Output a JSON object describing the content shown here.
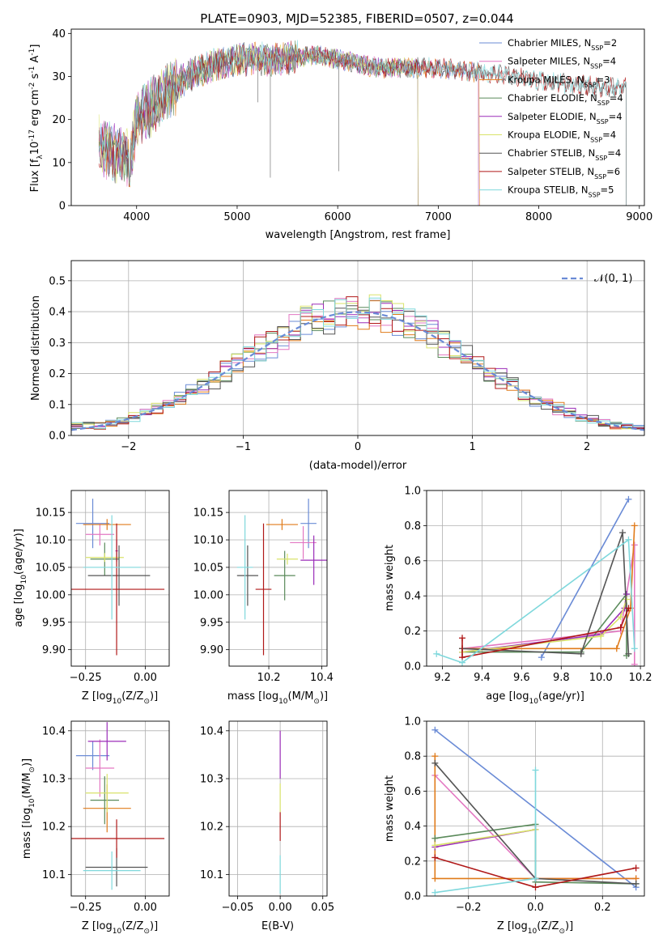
{
  "figure": {
    "title": "PLATE=0903, MJD=52385, FIBERID=0507, z=0.044"
  },
  "colors": {
    "Chabrier MILES": "#6a8bd6",
    "Salpeter MILES": "#e377c2",
    "Kroupa MILES": "#e07b1a",
    "Chabrier ELODIE": "#5a8a5a",
    "Salpeter ELODIE": "#9b2db8",
    "Kroupa ELODIE": "#d9e36a",
    "Chabrier STELIB": "#555555",
    "Salpeter STELIB": "#b01818",
    "Kroupa STELIB": "#7fd8dc"
  },
  "chart_data": [
    {
      "id": "spectrum",
      "type": "line",
      "xlabel": "wavelength [Angstrom, rest frame]",
      "ylabel_main": "Flux [f",
      "ylabel_unit": "10",
      "ylabel_exp": "-17",
      "ylabel_tail": " erg cm",
      "ylabel_tail_exp1": "-2",
      "ylabel_s": " s",
      "ylabel_tail_exp2": "-1",
      "ylabel_A": " A",
      "ylabel_tail_exp3": "-1",
      "ylabel_close": "]",
      "xlim": [
        3350,
        9050
      ],
      "ylim": [
        0,
        41
      ],
      "xticks": [
        "4000",
        "5000",
        "6000",
        "7000",
        "8000",
        "9000"
      ],
      "yticks": [
        "0",
        "10",
        "20",
        "30",
        "40"
      ],
      "xtick_values": [
        4000,
        5000,
        6000,
        7000,
        8000,
        9000
      ],
      "ytick_values": [
        0,
        10,
        20,
        30,
        40
      ],
      "continuum": {
        "x": [
          3620,
          3700,
          3800,
          3900,
          3950,
          4000,
          4100,
          4200,
          4300,
          4400,
          4500,
          4600,
          4700,
          4800,
          4900,
          5000,
          5200,
          5400,
          5600,
          5800,
          6000,
          6200,
          6400,
          6600,
          6800,
          7000,
          7200,
          7400,
          7600,
          7800,
          8000,
          8200,
          8400,
          8600,
          8800,
          8900
        ],
        "y": [
          15,
          13,
          12,
          11,
          12,
          20,
          22,
          24,
          26,
          28,
          30,
          31,
          32,
          33,
          33.5,
          34,
          34,
          34,
          34.5,
          35,
          34,
          33,
          32,
          32,
          32,
          32,
          31.5,
          31,
          30.5,
          30,
          29,
          28.5,
          28,
          27.5,
          27.5,
          27.5
        ]
      },
      "legend": [
        {
          "name": "Chabrier MILES",
          "n": "2"
        },
        {
          "name": "Salpeter MILES",
          "n": "4"
        },
        {
          "name": "Kroupa MILES",
          "n": "3"
        },
        {
          "name": "Chabrier ELODIE",
          "n": "4"
        },
        {
          "name": "Salpeter ELODIE",
          "n": "4"
        },
        {
          "name": "Kroupa ELODIE",
          "n": "4"
        },
        {
          "name": "Chabrier STELIB",
          "n": "4"
        },
        {
          "name": "Salpeter STELIB",
          "n": "6"
        },
        {
          "name": "Kroupa STELIB",
          "n": "5"
        }
      ],
      "legend_nlabel": "N",
      "legend_nsub": "SSP",
      "legend_placement": "upper-right",
      "grid": false
    },
    {
      "id": "residuals",
      "type": "histogram",
      "xlabel": "(data-model)/error",
      "ylabel": "Normed distribution",
      "xlim": [
        -2.5,
        2.5
      ],
      "ylim": [
        0,
        0.565
      ],
      "xticks": [
        "−2",
        "−1",
        "0",
        "1",
        "2"
      ],
      "xtick_values": [
        -2,
        -1,
        0,
        1,
        2
      ],
      "yticks": [
        "0.0",
        "0.1",
        "0.2",
        "0.3",
        "0.4",
        "0.5"
      ],
      "ytick_values": [
        0,
        0.1,
        0.2,
        0.3,
        0.4,
        0.5
      ],
      "bin_width": 0.1,
      "legend_label": "𝒩(0, 1)",
      "legend_placement": "upper-right",
      "grid": true
    },
    {
      "id": "age_vs_Z",
      "type": "errorbar",
      "xlabel": "Z [log",
      "xlabel_sub": "10",
      "xlabel_tail": "(Z/Z",
      "xlabel_sun": "⊙",
      "xlabel_close": ")]",
      "ylabel": "age  [log",
      "ylabel_sub": "10",
      "ylabel_tail": "(age/yr)]",
      "xlim": [
        -0.31,
        0.1
      ],
      "ylim": [
        9.87,
        10.19
      ],
      "xticks": [
        "−0.25",
        "0.00"
      ],
      "xtick_values": [
        -0.25,
        0
      ],
      "yticks": [
        "9.90",
        "9.95",
        "10.00",
        "10.05",
        "10.10",
        "10.15"
      ],
      "ytick_values": [
        9.9,
        9.95,
        10,
        10.05,
        10.1,
        10.15
      ],
      "points": [
        {
          "s": "Chabrier MILES",
          "x": -0.22,
          "xerr": 0.07,
          "y": 10.13,
          "yerr": 0.045
        },
        {
          "s": "Salpeter MILES",
          "x": -0.19,
          "xerr": 0.06,
          "y": 10.11,
          "yerr": 0.02
        },
        {
          "s": "Kroupa MILES",
          "x": -0.16,
          "xerr": 0.1,
          "y": 10.128,
          "yerr": 0.01
        },
        {
          "s": "Chabrier ELODIE",
          "x": -0.17,
          "xerr": 0.06,
          "y": 10.065,
          "yerr": 0.03
        },
        {
          "s": "Salpeter ELODIE",
          "x": -0.12,
          "xerr": 0.005,
          "y": 10.08,
          "yerr": 0.02
        },
        {
          "s": "Kroupa ELODIE",
          "x": -0.17,
          "xerr": 0.08,
          "y": 10.068,
          "yerr": 0.008
        },
        {
          "s": "Chabrier STELIB",
          "x": -0.11,
          "xerr": 0.13,
          "y": 10.035,
          "yerr": 0.055
        },
        {
          "s": "Salpeter STELIB",
          "x": -0.12,
          "xerr": 0.2,
          "y": 10.01,
          "yerr": 0.12
        },
        {
          "s": "Kroupa STELIB",
          "x": -0.14,
          "xerr": 0.12,
          "y": 10.05,
          "yerr": 0.095
        }
      ],
      "grid": true
    },
    {
      "id": "age_vs_mass",
      "type": "errorbar",
      "xlabel": "mass [log",
      "xlabel_sub": "10",
      "xlabel_tail": "(M/M",
      "xlabel_sun": "⊙",
      "xlabel_close": ")]",
      "xlim": [
        10.05,
        10.42
      ],
      "ylim": [
        9.87,
        10.19
      ],
      "xticks": [
        "10.2",
        "10.4"
      ],
      "xtick_values": [
        10.2,
        10.4
      ],
      "yticks": [
        "9.90",
        "9.95",
        "10.00",
        "10.05",
        "10.10",
        "10.15"
      ],
      "ytick_values": [
        9.9,
        9.95,
        10,
        10.05,
        10.1,
        10.15
      ],
      "points": [
        {
          "s": "Chabrier MILES",
          "x": 10.35,
          "xerr": 0.03,
          "y": 10.13,
          "yerr": 0.045
        },
        {
          "s": "Salpeter MILES",
          "x": 10.33,
          "xerr": 0.05,
          "y": 10.095,
          "yerr": 0.03
        },
        {
          "s": "Kroupa MILES",
          "x": 10.25,
          "xerr": 0.06,
          "y": 10.128,
          "yerr": 0.01
        },
        {
          "s": "Chabrier ELODIE",
          "x": 10.26,
          "xerr": 0.04,
          "y": 10.035,
          "yerr": 0.045
        },
        {
          "s": "Salpeter ELODIE",
          "x": 10.37,
          "xerr": 0.05,
          "y": 10.063,
          "yerr": 0.045
        },
        {
          "s": "Kroupa ELODIE",
          "x": 10.27,
          "xerr": 0.04,
          "y": 10.065,
          "yerr": 0.01
        },
        {
          "s": "Chabrier STELIB",
          "x": 10.12,
          "xerr": 0.04,
          "y": 10.035,
          "yerr": 0.055
        },
        {
          "s": "Salpeter STELIB",
          "x": 10.18,
          "xerr": 0.03,
          "y": 10.01,
          "yerr": 0.12
        },
        {
          "s": "Kroupa STELIB",
          "x": 10.11,
          "xerr": 0.03,
          "y": 10.05,
          "yerr": 0.095
        }
      ],
      "grid": true
    },
    {
      "id": "weight_vs_age",
      "type": "line",
      "xlabel": "age  [log",
      "xlabel_sub": "10",
      "xlabel_tail": "(age/yr)]",
      "ylabel": "mass weight",
      "xlim": [
        9.12,
        10.22
      ],
      "ylim": [
        0,
        1
      ],
      "xticks": [
        "9.2",
        "9.4",
        "9.6",
        "9.8",
        "10.0",
        "10.2"
      ],
      "xtick_values": [
        9.2,
        9.4,
        9.6,
        9.8,
        10,
        10.2
      ],
      "yticks": [
        "0.0",
        "0.2",
        "0.4",
        "0.6",
        "0.8",
        "1.0"
      ],
      "ytick_values": [
        0,
        0.2,
        0.4,
        0.6,
        0.8,
        1
      ],
      "series": [
        {
          "name": "Chabrier MILES",
          "x": [
            9.7,
            10.14
          ],
          "y": [
            0.05,
            0.95
          ]
        },
        {
          "name": "Salpeter MILES",
          "x": [
            9.3,
            10.1,
            10.17,
            10.17
          ],
          "y": [
            0.1,
            0.2,
            0.69,
            0.01
          ]
        },
        {
          "name": "Kroupa MILES",
          "x": [
            9.3,
            10.08,
            10.15,
            10.17
          ],
          "y": [
            0.1,
            0.1,
            0.33,
            0.8
          ]
        },
        {
          "name": "Chabrier ELODIE",
          "x": [
            9.3,
            9.9,
            10.13,
            10.13
          ],
          "y": [
            0.08,
            0.08,
            0.41,
            0.06
          ]
        },
        {
          "name": "Salpeter ELODIE",
          "x": [
            9.3,
            10.0,
            10.12,
            10.13
          ],
          "y": [
            0.08,
            0.18,
            0.33,
            0.41
          ]
        },
        {
          "name": "Kroupa ELODIE",
          "x": [
            9.3,
            10.0,
            10.1,
            10.13
          ],
          "y": [
            0.08,
            0.17,
            0.28,
            0.38
          ]
        },
        {
          "name": "Chabrier STELIB",
          "x": [
            9.3,
            9.9,
            10.11,
            10.14
          ],
          "y": [
            0.1,
            0.07,
            0.76,
            0.07
          ]
        },
        {
          "name": "Salpeter STELIB",
          "x": [
            9.3,
            9.3,
            10.1,
            10.14
          ],
          "y": [
            0.16,
            0.05,
            0.22,
            0.33
          ]
        },
        {
          "name": "Kroupa STELIB",
          "x": [
            9.17,
            9.3,
            10.14,
            10.17
          ],
          "y": [
            0.07,
            0.02,
            0.72,
            0.1
          ]
        }
      ],
      "grid": true
    },
    {
      "id": "mass_vs_Z",
      "type": "errorbar",
      "xlabel": "Z [log",
      "xlabel_sub": "10",
      "xlabel_tail": "(Z/Z",
      "xlabel_sun": "⊙",
      "xlabel_close": ")]",
      "ylabel": "mass [log",
      "ylabel_sub": "10",
      "ylabel_tail": "(M/M",
      "ylabel_sun": "⊙",
      "ylabel_close": ")]",
      "xlim": [
        -0.31,
        0.1
      ],
      "ylim": [
        10.055,
        10.42
      ],
      "xticks": [
        "−0.25",
        "0.00"
      ],
      "xtick_values": [
        -0.25,
        0
      ],
      "yticks": [
        "10.1",
        "10.2",
        "10.3",
        "10.4"
      ],
      "ytick_values": [
        10.1,
        10.2,
        10.3,
        10.4
      ],
      "points": [
        {
          "s": "Chabrier MILES",
          "x": -0.22,
          "xerr": 0.07,
          "y": 10.348,
          "yerr": 0.03
        },
        {
          "s": "Salpeter MILES",
          "x": -0.19,
          "xerr": 0.06,
          "y": 10.322,
          "yerr": 0.06
        },
        {
          "s": "Kroupa MILES",
          "x": -0.16,
          "xerr": 0.1,
          "y": 10.238,
          "yerr": 0.05
        },
        {
          "s": "Chabrier ELODIE",
          "x": -0.17,
          "xerr": 0.06,
          "y": 10.255,
          "yerr": 0.05
        },
        {
          "s": "Salpeter ELODIE",
          "x": -0.16,
          "xerr": 0.08,
          "y": 10.378,
          "yerr": 0.04
        },
        {
          "s": "Kroupa ELODIE",
          "x": -0.16,
          "xerr": 0.09,
          "y": 10.27,
          "yerr": 0.04
        },
        {
          "s": "Chabrier STELIB",
          "x": -0.12,
          "xerr": 0.13,
          "y": 10.115,
          "yerr": 0.04
        },
        {
          "s": "Salpeter STELIB",
          "x": -0.12,
          "xerr": 0.2,
          "y": 10.175,
          "yerr": 0.04
        },
        {
          "s": "Kroupa STELIB",
          "x": -0.14,
          "xerr": 0.12,
          "y": 10.108,
          "yerr": 0.04
        }
      ],
      "grid": true
    },
    {
      "id": "mass_vs_ebv",
      "type": "errorbar",
      "xlabel": "E(B-V)",
      "xlim": [
        -0.06,
        0.055
      ],
      "ylim": [
        10.055,
        10.42
      ],
      "xticks": [
        "−0.05",
        "0.00",
        "0.05"
      ],
      "xtick_values": [
        -0.05,
        0,
        0.05
      ],
      "yticks": [
        "10.1",
        "10.2",
        "10.3",
        "10.4"
      ],
      "ytick_values": [
        10.1,
        10.2,
        10.3,
        10.4
      ],
      "points": [
        {
          "s": "Salpeter ELODIE",
          "x": 0,
          "xerr": 0,
          "y": 10.35,
          "yerr": 0.05
        },
        {
          "s": "Kroupa ELODIE",
          "x": 0,
          "xerr": 0,
          "y": 10.26,
          "yerr": 0.03
        },
        {
          "s": "Salpeter STELIB",
          "x": 0,
          "xerr": 0,
          "y": 10.2,
          "yerr": 0.03
        },
        {
          "s": "Kroupa STELIB",
          "x": 0,
          "xerr": 0,
          "y": 10.1,
          "yerr": 0.04
        }
      ],
      "grid": true
    },
    {
      "id": "weight_vs_Z",
      "type": "line",
      "xlabel": "Z [log",
      "xlabel_sub": "10",
      "xlabel_tail": "(Z/Z",
      "xlabel_sun": "⊙",
      "xlabel_close": ")]",
      "ylabel": "mass weight",
      "xlim": [
        -0.325,
        0.325
      ],
      "ylim": [
        0,
        1
      ],
      "xticks": [
        "−0.2",
        "0.0",
        "0.2"
      ],
      "xtick_values": [
        -0.2,
        0,
        0.2
      ],
      "yticks": [
        "0.0",
        "0.2",
        "0.4",
        "0.6",
        "0.8",
        "1.0"
      ],
      "ytick_values": [
        0,
        0.2,
        0.4,
        0.6,
        0.8,
        1
      ],
      "series": [
        {
          "name": "Chabrier MILES",
          "x": [
            -0.3,
            0.3
          ],
          "y": [
            0.95,
            0.05
          ]
        },
        {
          "name": "Salpeter MILES",
          "x": [
            -0.3,
            0.0,
            0.3
          ],
          "y": [
            0.69,
            0.1,
            0.1
          ]
        },
        {
          "name": "Kroupa MILES",
          "x": [
            -0.3,
            -0.3,
            0.3
          ],
          "y": [
            0.8,
            0.1,
            0.1
          ]
        },
        {
          "name": "Chabrier ELODIE",
          "x": [
            -0.3,
            0.0,
            0.0,
            0.3
          ],
          "y": [
            0.33,
            0.41,
            0.08,
            0.07
          ]
        },
        {
          "name": "Salpeter ELODIE",
          "x": [
            -0.3,
            0.0
          ],
          "y": [
            0.28,
            0.38
          ]
        },
        {
          "name": "Kroupa ELODIE",
          "x": [
            -0.3,
            0.0
          ],
          "y": [
            0.29,
            0.38
          ]
        },
        {
          "name": "Chabrier STELIB",
          "x": [
            -0.3,
            0.0,
            0.3
          ],
          "y": [
            0.76,
            0.1,
            0.07
          ]
        },
        {
          "name": "Salpeter STELIB",
          "x": [
            -0.3,
            0.0,
            0.3
          ],
          "y": [
            0.22,
            0.05,
            0.16
          ]
        },
        {
          "name": "Kroupa STELIB",
          "x": [
            -0.3,
            0.0,
            0.0
          ],
          "y": [
            0.02,
            0.1,
            0.72
          ]
        }
      ],
      "grid": true
    }
  ]
}
